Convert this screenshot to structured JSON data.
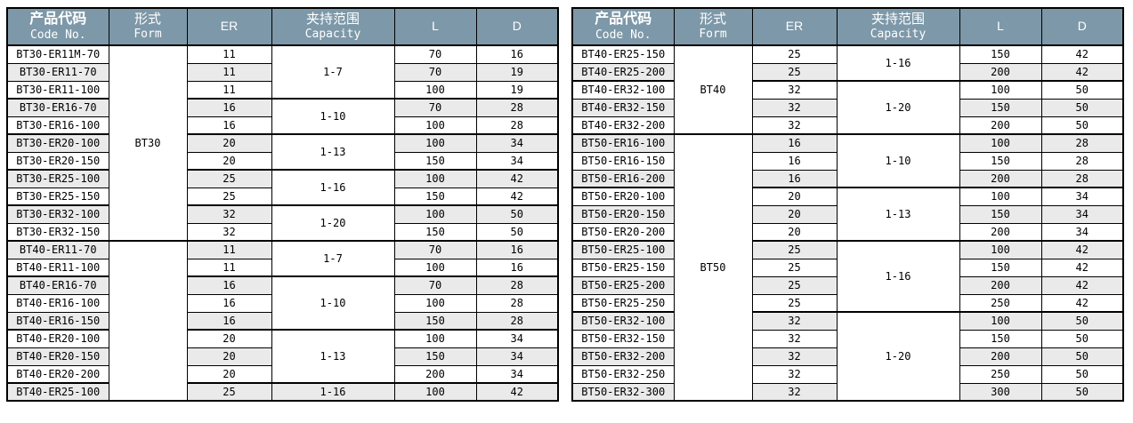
{
  "theme": {
    "header_bg": "#7D98A8",
    "header_text": "#FFFFFF",
    "row_bg": "#FFFFFF",
    "row_alt_bg": "#EAEAEA",
    "border": "#000000"
  },
  "columns": {
    "code_zh": "产品代码",
    "code_en": "Code No.",
    "form_zh": "形式",
    "form_en": "Form",
    "er": "ER",
    "capacity_zh": "夹持范围",
    "capacity_en": "Capacity",
    "l": "L",
    "d": "D"
  },
  "tables": [
    {
      "name": "left",
      "form_groups": [
        {
          "label": "BT30",
          "span": 11
        },
        {
          "label": "",
          "span": 9
        }
      ],
      "capacity_groups": [
        {
          "label": "1-7",
          "span": 3
        },
        {
          "label": "1-10",
          "span": 2
        },
        {
          "label": "1-13",
          "span": 2
        },
        {
          "label": "1-16",
          "span": 2
        },
        {
          "label": "1-20",
          "span": 2
        },
        {
          "label": "1-7",
          "span": 2
        },
        {
          "label": "1-10",
          "span": 3
        },
        {
          "label": "1-13",
          "span": 3
        },
        {
          "label": "1-16",
          "span": 1
        }
      ],
      "rows": [
        {
          "code": "BT30-ER11M-70",
          "er": "11",
          "l": "70",
          "d": "16"
        },
        {
          "code": "BT30-ER11-70",
          "er": "11",
          "l": "70",
          "d": "19"
        },
        {
          "code": "BT30-ER11-100",
          "er": "11",
          "l": "100",
          "d": "19"
        },
        {
          "code": "BT30-ER16-70",
          "er": "16",
          "l": "70",
          "d": "28"
        },
        {
          "code": "BT30-ER16-100",
          "er": "16",
          "l": "100",
          "d": "28"
        },
        {
          "code": "BT30-ER20-100",
          "er": "20",
          "l": "100",
          "d": "34"
        },
        {
          "code": "BT30-ER20-150",
          "er": "20",
          "l": "150",
          "d": "34"
        },
        {
          "code": "BT30-ER25-100",
          "er": "25",
          "l": "100",
          "d": "42"
        },
        {
          "code": "BT30-ER25-150",
          "er": "25",
          "l": "150",
          "d": "42"
        },
        {
          "code": "BT30-ER32-100",
          "er": "32",
          "l": "100",
          "d": "50"
        },
        {
          "code": "BT30-ER32-150",
          "er": "32",
          "l": "150",
          "d": "50"
        },
        {
          "code": "BT40-ER11-70",
          "er": "11",
          "l": "70",
          "d": "16"
        },
        {
          "code": "BT40-ER11-100",
          "er": "11",
          "l": "100",
          "d": "16"
        },
        {
          "code": "BT40-ER16-70",
          "er": "16",
          "l": "70",
          "d": "28"
        },
        {
          "code": "BT40-ER16-100",
          "er": "16",
          "l": "100",
          "d": "28"
        },
        {
          "code": "BT40-ER16-150",
          "er": "16",
          "l": "150",
          "d": "28"
        },
        {
          "code": "BT40-ER20-100",
          "er": "20",
          "l": "100",
          "d": "34"
        },
        {
          "code": "BT40-ER20-150",
          "er": "20",
          "l": "150",
          "d": "34"
        },
        {
          "code": "BT40-ER20-200",
          "er": "20",
          "l": "200",
          "d": "34"
        },
        {
          "code": "BT40-ER25-100",
          "er": "25",
          "l": "100",
          "d": "42"
        }
      ]
    },
    {
      "name": "right",
      "form_groups": [
        {
          "label": "BT40",
          "span": 5
        },
        {
          "label": "BT50",
          "span": 15
        }
      ],
      "capacity_groups": [
        {
          "label": "1-16",
          "span": 2
        },
        {
          "label": "1-20",
          "span": 3
        },
        {
          "label": "1-10",
          "span": 3
        },
        {
          "label": "1-13",
          "span": 3
        },
        {
          "label": "1-16",
          "span": 4
        },
        {
          "label": "1-20",
          "span": 5
        }
      ],
      "rows": [
        {
          "code": "BT40-ER25-150",
          "er": "25",
          "l": "150",
          "d": "42"
        },
        {
          "code": "BT40-ER25-200",
          "er": "25",
          "l": "200",
          "d": "42"
        },
        {
          "code": "BT40-ER32-100",
          "er": "32",
          "l": "100",
          "d": "50"
        },
        {
          "code": "BT40-ER32-150",
          "er": "32",
          "l": "150",
          "d": "50"
        },
        {
          "code": "BT40-ER32-200",
          "er": "32",
          "l": "200",
          "d": "50"
        },
        {
          "code": "BT50-ER16-100",
          "er": "16",
          "l": "100",
          "d": "28"
        },
        {
          "code": "BT50-ER16-150",
          "er": "16",
          "l": "150",
          "d": "28"
        },
        {
          "code": "BT50-ER16-200",
          "er": "16",
          "l": "200",
          "d": "28"
        },
        {
          "code": "BT50-ER20-100",
          "er": "20",
          "l": "100",
          "d": "34"
        },
        {
          "code": "BT50-ER20-150",
          "er": "20",
          "l": "150",
          "d": "34"
        },
        {
          "code": "BT50-ER20-200",
          "er": "20",
          "l": "200",
          "d": "34"
        },
        {
          "code": "BT50-ER25-100",
          "er": "25",
          "l": "100",
          "d": "42"
        },
        {
          "code": "BT50-ER25-150",
          "er": "25",
          "l": "150",
          "d": "42"
        },
        {
          "code": "BT50-ER25-200",
          "er": "25",
          "l": "200",
          "d": "42"
        },
        {
          "code": "BT50-ER25-250",
          "er": "25",
          "l": "250",
          "d": "42"
        },
        {
          "code": "BT50-ER32-100",
          "er": "32",
          "l": "100",
          "d": "50"
        },
        {
          "code": "BT50-ER32-150",
          "er": "32",
          "l": "150",
          "d": "50"
        },
        {
          "code": "BT50-ER32-200",
          "er": "32",
          "l": "200",
          "d": "50"
        },
        {
          "code": "BT50-ER32-250",
          "er": "32",
          "l": "250",
          "d": "50"
        },
        {
          "code": "BT50-ER32-300",
          "er": "32",
          "l": "300",
          "d": "50"
        }
      ]
    }
  ]
}
